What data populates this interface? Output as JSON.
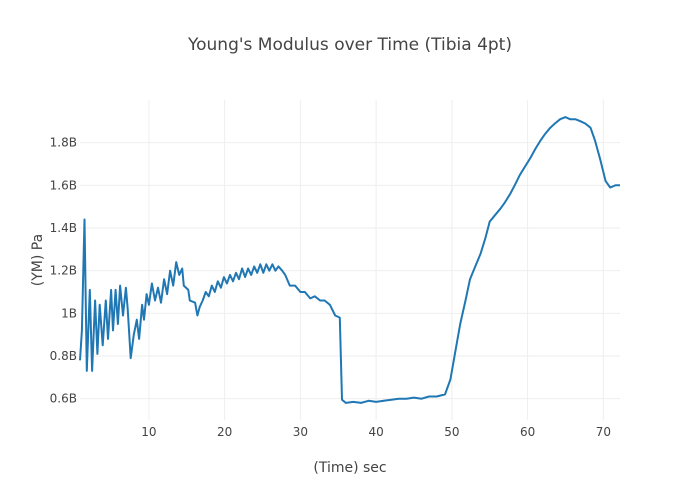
{
  "chart_data": {
    "type": "line",
    "title": "Young's Modulus over Time (Tibia 4pt)",
    "xlabel": "(Time) sec",
    "ylabel": "(YM) Pa",
    "xlim": [
      0.9,
      72.2
    ],
    "ylim": [
      0.5,
      2.0
    ],
    "grid": true,
    "line_color": "#1f77b4",
    "grid_color": "#eeeeee",
    "x_ticks": [
      10,
      20,
      30,
      40,
      50,
      60,
      70
    ],
    "x_tick_labels": [
      "10",
      "20",
      "30",
      "40",
      "50",
      "60",
      "70"
    ],
    "y_ticks": [
      0.6,
      0.8,
      1.0,
      1.2,
      1.4,
      1.6,
      1.8
    ],
    "y_tick_labels": [
      "0.6B",
      "0.8B",
      "1B",
      "1.2B",
      "1.4B",
      "1.6B",
      "1.8B"
    ],
    "series": [
      {
        "name": "Young's Modulus",
        "x": [
          0.9,
          1.15,
          1.5,
          1.8,
          2.2,
          2.5,
          2.9,
          3.2,
          3.5,
          3.9,
          4.3,
          4.6,
          5.0,
          5.26,
          5.6,
          5.9,
          6.2,
          6.58,
          6.96,
          7.2,
          7.6,
          8.0,
          8.4,
          8.7,
          9.1,
          9.35,
          9.7,
          10.0,
          10.4,
          10.8,
          11.2,
          11.6,
          12.0,
          12.4,
          12.8,
          13.2,
          13.6,
          14.0,
          14.4,
          14.6,
          15.2,
          15.4,
          16.1,
          16.4,
          16.7,
          17.1,
          17.5,
          17.9,
          18.3,
          18.7,
          19.1,
          19.5,
          19.9,
          20.3,
          20.7,
          21.1,
          21.5,
          21.9,
          22.3,
          22.7,
          23.1,
          23.5,
          23.9,
          24.3,
          24.7,
          25.1,
          25.5,
          25.9,
          26.3,
          26.7,
          27.1,
          27.6,
          28.0,
          28.6,
          29.3,
          30.0,
          30.6,
          31.3,
          31.9,
          32.6,
          33.2,
          33.9,
          34.6,
          35.2,
          35.5,
          36.0,
          37,
          38,
          39,
          40,
          41,
          42,
          43,
          44,
          45,
          46,
          47,
          48,
          49.1,
          49.8,
          50.4,
          51.1,
          51.8,
          52.4,
          53.1,
          53.8,
          54.4,
          55.0,
          55.7,
          56.4,
          57.0,
          57.7,
          58.3,
          59.0,
          59.7,
          60.4,
          61.0,
          61.7,
          62.3,
          63.0,
          63.6,
          64.3,
          65.0,
          65.6,
          66.3,
          67.0,
          67.6,
          68.3,
          68.9,
          69.6,
          70.3,
          70.9,
          71.6,
          72.2
        ],
        "y": [
          0.78,
          0.92,
          1.44,
          0.73,
          1.11,
          0.73,
          1.06,
          0.81,
          1.04,
          0.85,
          1.06,
          0.88,
          1.11,
          0.92,
          1.11,
          0.95,
          1.13,
          0.99,
          1.12,
          1.02,
          0.79,
          0.9,
          0.97,
          0.88,
          1.04,
          0.97,
          1.09,
          1.04,
          1.14,
          1.06,
          1.12,
          1.05,
          1.16,
          1.09,
          1.2,
          1.13,
          1.24,
          1.18,
          1.21,
          1.13,
          1.11,
          1.06,
          1.05,
          0.99,
          1.03,
          1.06,
          1.1,
          1.08,
          1.13,
          1.1,
          1.15,
          1.12,
          1.17,
          1.14,
          1.18,
          1.15,
          1.19,
          1.16,
          1.21,
          1.17,
          1.21,
          1.18,
          1.22,
          1.19,
          1.23,
          1.19,
          1.23,
          1.2,
          1.23,
          1.2,
          1.22,
          1.2,
          1.18,
          1.13,
          1.13,
          1.1,
          1.1,
          1.07,
          1.08,
          1.06,
          1.06,
          1.04,
          0.99,
          0.98,
          0.595,
          0.58,
          0.585,
          0.58,
          0.59,
          0.585,
          0.59,
          0.595,
          0.6,
          0.6,
          0.605,
          0.6,
          0.61,
          0.61,
          0.62,
          0.69,
          0.81,
          0.95,
          1.06,
          1.16,
          1.22,
          1.28,
          1.35,
          1.43,
          1.46,
          1.49,
          1.52,
          1.56,
          1.6,
          1.65,
          1.69,
          1.73,
          1.77,
          1.81,
          1.84,
          1.87,
          1.89,
          1.91,
          1.92,
          1.91,
          1.91,
          1.9,
          1.89,
          1.87,
          1.81,
          1.72,
          1.62,
          1.59,
          1.6,
          1.6
        ]
      }
    ]
  }
}
